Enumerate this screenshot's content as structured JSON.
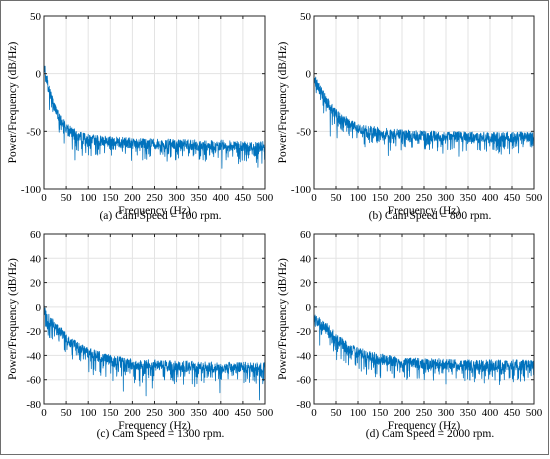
{
  "chart_data": [
    {
      "type": "line",
      "caption": "(a) Cam Speed = 100 rpm.",
      "xlabel": "Frequency (Hz)",
      "ylabel": "Power/Frequency (dB/Hz)",
      "xlim": [
        0,
        500
      ],
      "ylim": [
        -100,
        50
      ],
      "xticks": [
        0,
        50,
        100,
        150,
        200,
        250,
        300,
        350,
        400,
        450,
        500
      ],
      "yticks": [
        -100,
        -50,
        0,
        50
      ],
      "grid": true,
      "color": "#0072BD",
      "series": [
        {
          "x": [
            0,
            5,
            10,
            20,
            30,
            40,
            50,
            75,
            100,
            150,
            200,
            250,
            300,
            350,
            400,
            450,
            500
          ],
          "y": [
            10,
            0,
            -12,
            -25,
            -35,
            -42,
            -47,
            -54,
            -57,
            -59,
            -60,
            -61,
            -61,
            -62,
            -62,
            -63,
            -63
          ]
        }
      ]
    },
    {
      "type": "line",
      "caption": "(b) Cam Speed = 800 rpm.",
      "xlabel": "Frequency (Hz)",
      "ylabel": "Power/Frequency (dB/Hz)",
      "xlim": [
        0,
        500
      ],
      "ylim": [
        -100,
        50
      ],
      "xticks": [
        0,
        50,
        100,
        150,
        200,
        250,
        300,
        350,
        400,
        450,
        500
      ],
      "yticks": [
        -100,
        -50,
        0,
        50
      ],
      "grid": true,
      "color": "#0072BD",
      "series": [
        {
          "x": [
            0,
            5,
            10,
            20,
            30,
            40,
            50,
            75,
            100,
            150,
            200,
            250,
            300,
            350,
            400,
            450,
            500
          ],
          "y": [
            -5,
            -8,
            -12,
            -18,
            -24,
            -30,
            -35,
            -42,
            -47,
            -51,
            -53,
            -54,
            -54,
            -55,
            -55,
            -55,
            -55
          ]
        }
      ]
    },
    {
      "type": "line",
      "caption": "(c) Cam Speed = 1300 rpm.",
      "xlabel": "Frequency (Hz)",
      "ylabel": "Power/Frequency (dB/Hz)",
      "xlim": [
        0,
        500
      ],
      "ylim": [
        -80,
        60
      ],
      "xticks": [
        0,
        50,
        100,
        150,
        200,
        250,
        300,
        350,
        400,
        450,
        500
      ],
      "yticks": [
        -80,
        -60,
        -40,
        -20,
        0,
        20,
        40,
        60
      ],
      "grid": true,
      "color": "#0072BD",
      "series": [
        {
          "x": [
            0,
            5,
            10,
            20,
            30,
            40,
            50,
            75,
            100,
            150,
            200,
            250,
            300,
            350,
            400,
            450,
            500
          ],
          "y": [
            -2,
            -6,
            -10,
            -14,
            -18,
            -22,
            -26,
            -33,
            -38,
            -44,
            -47,
            -48,
            -49,
            -49,
            -50,
            -50,
            -50
          ]
        }
      ]
    },
    {
      "type": "line",
      "caption": "(d) Cam Speed = 2000 rpm.",
      "xlabel": "Frequency (Hz)",
      "ylabel": "Power/Frequency (dB/Hz)",
      "xlim": [
        0,
        500
      ],
      "ylim": [
        -80,
        60
      ],
      "xticks": [
        0,
        50,
        100,
        150,
        200,
        250,
        300,
        350,
        400,
        450,
        500
      ],
      "yticks": [
        -80,
        -60,
        -40,
        -20,
        0,
        20,
        40,
        60
      ],
      "grid": true,
      "color": "#0072BD",
      "series": [
        {
          "x": [
            0,
            5,
            10,
            20,
            30,
            40,
            50,
            75,
            100,
            150,
            200,
            250,
            300,
            350,
            400,
            450,
            500
          ],
          "y": [
            -8,
            -10,
            -12,
            -15,
            -18,
            -22,
            -26,
            -33,
            -38,
            -43,
            -46,
            -47,
            -47,
            -48,
            -48,
            -48,
            -48
          ]
        }
      ]
    }
  ]
}
